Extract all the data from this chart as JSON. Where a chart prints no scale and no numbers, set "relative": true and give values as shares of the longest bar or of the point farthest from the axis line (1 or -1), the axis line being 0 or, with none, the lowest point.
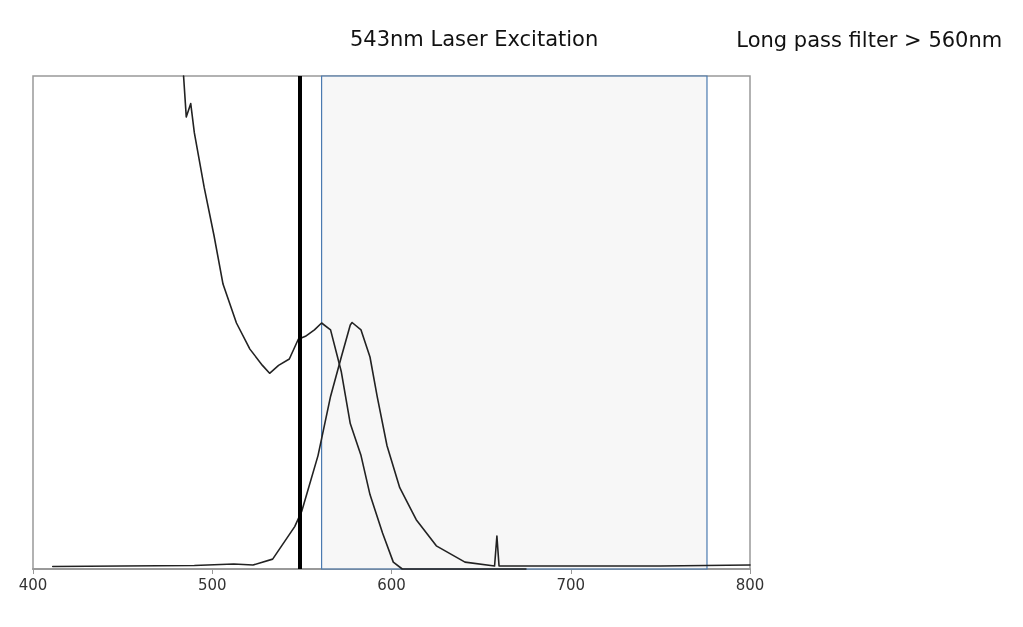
{
  "chart_data": {
    "type": "line",
    "relative": true,
    "xlim": [
      400,
      800
    ],
    "xticks": [
      400,
      500,
      600,
      700,
      800
    ],
    "grid": false,
    "marker": "none",
    "line_style": "solid",
    "series": [
      {
        "color": "#222222",
        "x": [
          484,
          485.5,
          488,
          490,
          495.5,
          501,
          506,
          513.5,
          521,
          528,
          532,
          537,
          543,
          548,
          552,
          557,
          561,
          566,
          572,
          577,
          583,
          588,
          595,
          601,
          606,
          620,
          640,
          660,
          675
        ],
        "values": [
          1.0,
          0.917,
          0.944,
          0.885,
          0.774,
          0.676,
          0.578,
          0.499,
          0.446,
          0.413,
          0.397,
          0.413,
          0.426,
          0.466,
          0.472,
          0.485,
          0.499,
          0.485,
          0.4,
          0.295,
          0.23,
          0.151,
          0.073,
          0.014,
          0.0,
          0.0,
          0.0,
          0.0,
          0.0
        ]
      },
      {
        "color": "#222222",
        "x": [
          411,
          450,
          490,
          512,
          522.7,
          533.7,
          546,
          550,
          559,
          566,
          572,
          577,
          578,
          583,
          588,
          592,
          597.5,
          604.6,
          613.8,
          625,
          641,
          657.5,
          658.8,
          660,
          700,
          750,
          800
        ],
        "values": [
          0.005,
          0.006,
          0.007,
          0.01,
          0.008,
          0.02,
          0.086,
          0.118,
          0.23,
          0.35,
          0.43,
          0.495,
          0.5,
          0.485,
          0.43,
          0.35,
          0.25,
          0.165,
          0.1,
          0.047,
          0.014,
          0.006,
          0.067,
          0.006,
          0.006,
          0.006,
          0.008
        ]
      }
    ],
    "ref_lines": [
      {
        "axis": "x",
        "value": 549,
        "label": "543nm Laser Excitation",
        "color": "#000000"
      }
    ],
    "bands": [
      {
        "axis": "x",
        "from": 561,
        "to": 776,
        "label": "Long pass filter > 560nm",
        "color": "#4a7ab0"
      }
    ]
  }
}
